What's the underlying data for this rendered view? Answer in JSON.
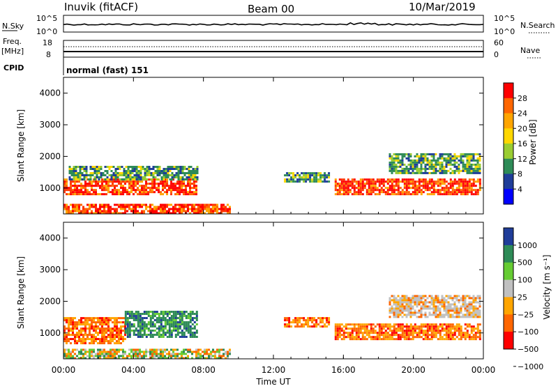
{
  "header": {
    "station": "Inuvik (fitACF)",
    "beam": "Beam 00",
    "date": "10/Mar/2019"
  },
  "top_panels": {
    "nsky_label": "N.Sky",
    "nsky_ticks": [
      "10^5",
      "10^0"
    ],
    "nsearch_label": "N.Search",
    "nsearch_ticks": [
      "10^5",
      "10^0"
    ],
    "freq_label_1": "Freq.",
    "freq_label_2": "[MHz]",
    "freq_ticks": [
      "18",
      "8"
    ],
    "nave_label": "Nave",
    "nave_ticks": [
      "60",
      "0"
    ],
    "cpid_label": "CPID",
    "cpid_value": "normal (fast) 151"
  },
  "chart_data": [
    {
      "type": "heatmap",
      "title": "",
      "xlabel": "Time UT",
      "ylabel": "Slant Range [km]",
      "x_ticks": [
        "00:00",
        "04:00",
        "08:00",
        "12:00",
        "16:00",
        "20:00",
        "00:00"
      ],
      "x_hours": [
        0,
        4,
        8,
        12,
        16,
        20,
        24
      ],
      "xlim": [
        0,
        24
      ],
      "y_ticks": [
        "1000",
        "2000",
        "3000",
        "4000"
      ],
      "y_values": [
        1000,
        2000,
        3000,
        4000
      ],
      "ylim": [
        180,
        4500
      ],
      "colorbar_label": "Power [dB]",
      "colorbar_ticks": [
        "28",
        "24",
        "20",
        "16",
        "12",
        "8",
        "4"
      ],
      "colorbar_colors": [
        "#ff0000",
        "#ff6600",
        "#ffa500",
        "#ffd700",
        "#9acd32",
        "#2e8b57",
        "#1f3d99",
        "#0000ff"
      ],
      "regions": [
        {
          "t0": 0.0,
          "t1": 7.6,
          "r0": 800,
          "r1": 1300,
          "level": "high"
        },
        {
          "t0": 0.3,
          "t1": 7.6,
          "r0": 1300,
          "r1": 1700,
          "level": "mid"
        },
        {
          "t0": 0.0,
          "t1": 9.5,
          "r0": 200,
          "r1": 500,
          "level": "high"
        },
        {
          "t0": 12.6,
          "t1": 15.2,
          "r0": 1200,
          "r1": 1500,
          "level": "mid"
        },
        {
          "t0": 15.5,
          "t1": 23.8,
          "r0": 800,
          "r1": 1300,
          "level": "high"
        },
        {
          "t0": 18.6,
          "t1": 23.8,
          "r0": 1500,
          "r1": 2100,
          "level": "mid"
        }
      ]
    },
    {
      "type": "heatmap",
      "title": "",
      "xlabel": "Time UT",
      "ylabel": "Slant Range [km]",
      "x_ticks": [
        "00:00",
        "04:00",
        "08:00",
        "12:00",
        "16:00",
        "20:00",
        "00:00"
      ],
      "x_hours": [
        0,
        4,
        8,
        12,
        16,
        20,
        24
      ],
      "xlim": [
        0,
        24
      ],
      "y_ticks": [
        "1000",
        "2000",
        "3000",
        "4000"
      ],
      "y_values": [
        1000,
        2000,
        3000,
        4000
      ],
      "ylim": [
        180,
        4500
      ],
      "colorbar_label": "Velocity [m s⁻¹]",
      "colorbar_ticks": [
        "1000",
        "500",
        "100",
        "25",
        "−25",
        "−100",
        "−500",
        "−1000"
      ],
      "colorbar_colors": [
        "#1f3d99",
        "#2e8b57",
        "#66cc33",
        "#c0c0c0",
        "#ffa500",
        "#ff6600",
        "#ff0000"
      ],
      "regions": [
        {
          "t0": 0.0,
          "t1": 3.5,
          "r0": 700,
          "r1": 1500,
          "level": "neg"
        },
        {
          "t0": 3.5,
          "t1": 7.6,
          "r0": 900,
          "r1": 1700,
          "level": "pos"
        },
        {
          "t0": 0.0,
          "t1": 9.5,
          "r0": 200,
          "r1": 500,
          "level": "mix"
        },
        {
          "t0": 12.6,
          "t1": 15.2,
          "r0": 1200,
          "r1": 1500,
          "level": "neg"
        },
        {
          "t0": 15.5,
          "t1": 23.8,
          "r0": 800,
          "r1": 1300,
          "level": "neg"
        },
        {
          "t0": 18.6,
          "t1": 23.8,
          "r0": 1500,
          "r1": 2200,
          "level": "zero"
        }
      ]
    }
  ]
}
